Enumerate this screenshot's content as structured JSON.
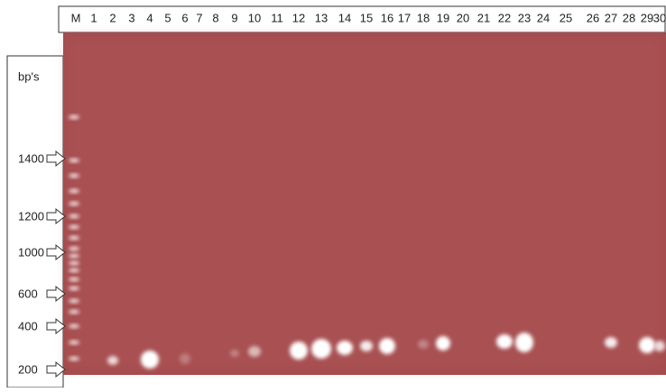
{
  "header": {
    "lanes": [
      "M",
      "1",
      "2",
      "3",
      "4",
      "5",
      "6",
      "7",
      "8",
      "9",
      "10",
      "11",
      "12",
      "13",
      "14",
      "15",
      "16",
      "17",
      "18",
      "19",
      "20",
      "21",
      "22",
      "23",
      "24",
      "25",
      "26",
      "27",
      "28",
      "29",
      "30"
    ]
  },
  "scale": {
    "unit": "bp's",
    "markers": [
      "1400",
      "1200",
      "1000",
      "600",
      "400",
      "200"
    ]
  }
}
